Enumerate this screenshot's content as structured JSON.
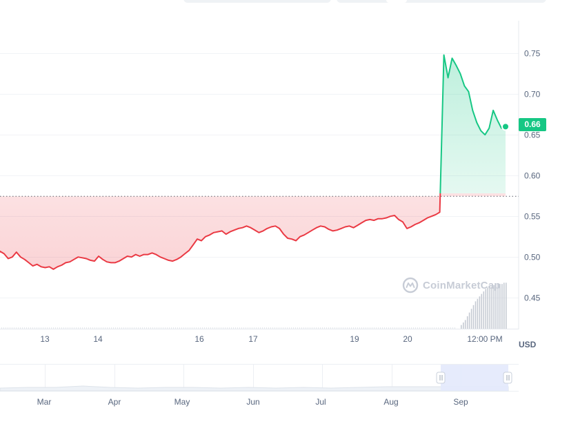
{
  "chart_data": [
    {
      "type": "line",
      "currency": "USD",
      "current_price": "0.66",
      "y_ticks": [
        "0.75",
        "0.70",
        "0.65",
        "0.60",
        "0.55",
        "0.50",
        "0.45"
      ],
      "ylim": [
        0.412,
        0.79
      ],
      "x_tick_labels": [
        "13",
        "14",
        "16",
        "17",
        "19",
        "20",
        "12:00 PM"
      ],
      "baseline_price": 0.5745,
      "colors": {
        "up": "#16c784",
        "down": "#ea3943",
        "badge": "#16c784"
      },
      "series": [
        {
          "values": [
            0.495,
            0.507,
            0.504,
            0.498,
            0.5,
            0.506,
            0.5,
            0.497,
            0.493,
            0.489,
            0.491,
            0.488,
            0.487,
            0.488,
            0.485,
            0.488,
            0.49,
            0.493,
            0.494,
            0.497,
            0.5,
            0.499,
            0.498,
            0.496,
            0.495,
            0.501,
            0.497,
            0.494,
            0.493,
            0.493,
            0.495,
            0.498,
            0.501,
            0.5,
            0.503,
            0.501,
            0.503,
            0.503,
            0.505,
            0.503,
            0.5,
            0.498,
            0.496,
            0.495,
            0.497,
            0.5,
            0.504,
            0.508,
            0.515,
            0.522,
            0.52,
            0.525,
            0.527,
            0.53,
            0.531,
            0.532,
            0.528,
            0.531,
            0.533,
            0.535,
            0.536,
            0.538,
            0.536,
            0.533,
            0.53,
            0.532,
            0.535,
            0.537,
            0.538,
            0.535,
            0.528,
            0.523,
            0.522,
            0.52,
            0.525,
            0.527,
            0.53,
            0.533,
            0.536,
            0.538,
            0.537,
            0.534,
            0.532,
            0.533,
            0.535,
            0.537,
            0.538,
            0.536,
            0.539,
            0.542,
            0.545,
            0.546,
            0.545,
            0.547,
            0.547,
            0.548,
            0.55,
            0.551,
            0.546,
            0.543,
            0.535,
            0.537,
            0.54,
            0.542,
            0.545,
            0.548,
            0.55,
            0.552,
            0.555,
            0.748,
            0.72,
            0.744,
            0.735,
            0.725,
            0.71,
            0.703,
            0.68,
            0.665,
            0.655,
            0.65,
            0.658,
            0.68,
            0.668,
            0.658,
            0.66
          ]
        }
      ],
      "volume_bars": [
        0.03,
        0.05,
        0.07,
        0.1,
        0.13,
        0.16,
        0.19,
        0.22,
        0.24,
        0.26,
        0.28,
        0.3,
        0.32,
        0.33,
        0.34,
        0.34,
        0.35,
        0.35,
        0.36,
        0.36,
        0.36,
        0.37,
        0.37
      ]
    },
    {
      "type": "area",
      "x_tick_labels": [
        "Mar",
        "Apr",
        "May",
        "Jun",
        "Jul",
        "Aug",
        "Sep"
      ],
      "range_selection": [
        "Sep",
        "Sep"
      ]
    }
  ],
  "watermark": {
    "text": "CoinMarketCap"
  },
  "icons": {
    "watermark_logo": "coinmarketcap-logo-icon",
    "handle": "range-handle-icon"
  }
}
